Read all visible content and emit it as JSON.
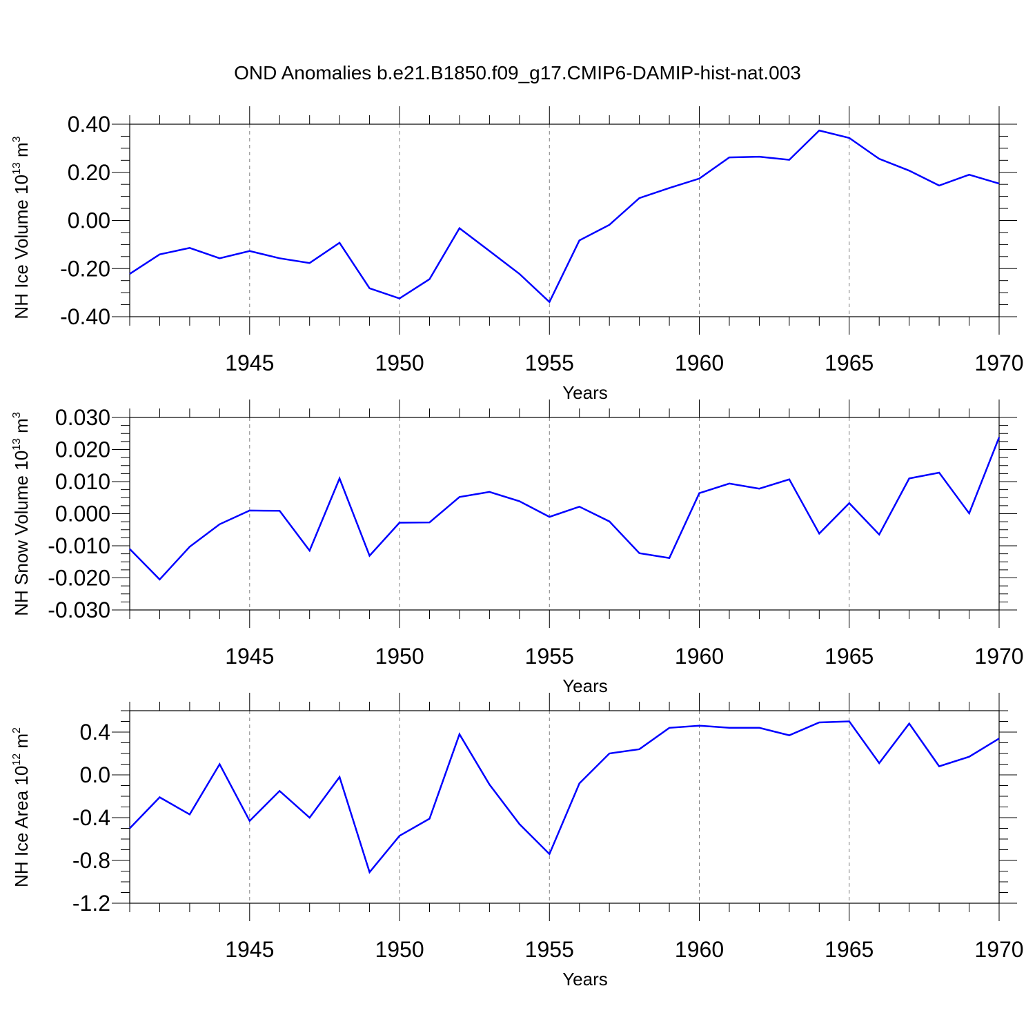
{
  "title": "OND Anomalies b.e21.B1850.f09_g17.CMIP6-DAMIP-hist-nat.003",
  "colors": {
    "line": "#0000ff",
    "axis": "#000000",
    "grid": "#808080"
  },
  "chart_data": [
    {
      "type": "line",
      "ylabel": {
        "base": "NH Ice Volume 10",
        "exp": "13",
        "unit": " m",
        "unit_exp": "3"
      },
      "xlabel": "Years",
      "xlim": [
        1941,
        1970
      ],
      "ylim": [
        -0.4,
        0.4
      ],
      "yticks": [
        "0.40",
        "0.20",
        "0.00",
        "-0.20",
        "-0.40"
      ],
      "ytick_values": [
        0.4,
        0.2,
        0.0,
        -0.2,
        -0.4
      ],
      "xticks": [
        "1945",
        "1950",
        "1955",
        "1960",
        "1965",
        "1970"
      ],
      "xtick_values": [
        1945,
        1950,
        1955,
        1960,
        1965,
        1970
      ],
      "x": [
        1941,
        1942,
        1943,
        1944,
        1945,
        1946,
        1947,
        1948,
        1949,
        1950,
        1951,
        1952,
        1953,
        1954,
        1955,
        1956,
        1957,
        1958,
        1959,
        1960,
        1961,
        1962,
        1963,
        1964,
        1965,
        1966,
        1967,
        1968,
        1969,
        1970
      ],
      "values": [
        -0.222,
        -0.141,
        -0.114,
        -0.157,
        -0.127,
        -0.157,
        -0.177,
        -0.093,
        -0.282,
        -0.324,
        -0.244,
        -0.032,
        -0.127,
        -0.222,
        -0.339,
        -0.083,
        -0.018,
        0.093,
        0.135,
        0.174,
        0.262,
        0.265,
        0.252,
        0.374,
        0.343,
        0.256,
        0.207,
        0.145,
        0.19,
        0.153
      ]
    },
    {
      "type": "line",
      "ylabel": {
        "base": "NH Snow Volume 10",
        "exp": "13",
        "unit": " m",
        "unit_exp": "3"
      },
      "xlabel": "Years",
      "xlim": [
        1941,
        1970
      ],
      "ylim": [
        -0.03,
        0.03
      ],
      "yticks": [
        "0.030",
        "0.020",
        "0.010",
        "0.000",
        "-0.010",
        "-0.020",
        "-0.030"
      ],
      "ytick_values": [
        0.03,
        0.02,
        0.01,
        0.0,
        -0.01,
        -0.02,
        -0.03
      ],
      "xticks": [
        "1945",
        "1950",
        "1955",
        "1960",
        "1965",
        "1970"
      ],
      "xtick_values": [
        1945,
        1950,
        1955,
        1960,
        1965,
        1970
      ],
      "x": [
        1941,
        1942,
        1943,
        1944,
        1945,
        1946,
        1947,
        1948,
        1949,
        1950,
        1951,
        1952,
        1953,
        1954,
        1955,
        1956,
        1957,
        1958,
        1959,
        1960,
        1961,
        1962,
        1963,
        1964,
        1965,
        1966,
        1967,
        1968,
        1969,
        1970
      ],
      "values": [
        -0.011,
        -0.0205,
        -0.0103,
        -0.0033,
        0.001,
        0.0009,
        -0.0115,
        0.011,
        -0.0131,
        -0.0028,
        -0.0027,
        0.0052,
        0.0068,
        0.0039,
        -0.001,
        0.0022,
        -0.0024,
        -0.0123,
        -0.0138,
        0.0064,
        0.0094,
        0.0078,
        0.0107,
        -0.0062,
        0.0033,
        -0.0065,
        0.011,
        0.0128,
        0.0001,
        0.0238
      ]
    },
    {
      "type": "line",
      "ylabel": {
        "base": "NH Ice Area 10",
        "exp": "12",
        "unit": " m",
        "unit_exp": "2"
      },
      "xlabel": "Years",
      "xlim": [
        1941,
        1970
      ],
      "ylim": [
        -1.2,
        0.6
      ],
      "yticks": [
        "0.4",
        "0.0",
        "-0.4",
        "-0.8",
        "-1.2"
      ],
      "ytick_values": [
        0.4,
        0.0,
        -0.4,
        -0.8,
        -1.2
      ],
      "xticks": [
        "1945",
        "1950",
        "1955",
        "1960",
        "1965",
        "1970"
      ],
      "xtick_values": [
        1945,
        1950,
        1955,
        1960,
        1965,
        1970
      ],
      "x": [
        1941,
        1942,
        1943,
        1944,
        1945,
        1946,
        1947,
        1948,
        1949,
        1950,
        1951,
        1952,
        1953,
        1954,
        1955,
        1956,
        1957,
        1958,
        1959,
        1960,
        1961,
        1962,
        1963,
        1964,
        1965,
        1966,
        1967,
        1968,
        1969,
        1970
      ],
      "values": [
        -0.5,
        -0.21,
        -0.37,
        0.1,
        -0.43,
        -0.15,
        -0.4,
        -0.02,
        -0.91,
        -0.57,
        -0.41,
        0.38,
        -0.09,
        -0.46,
        -0.74,
        -0.08,
        0.2,
        0.24,
        0.44,
        0.46,
        0.44,
        0.44,
        0.37,
        0.49,
        0.5,
        0.11,
        0.48,
        0.08,
        0.17,
        0.34
      ]
    }
  ]
}
